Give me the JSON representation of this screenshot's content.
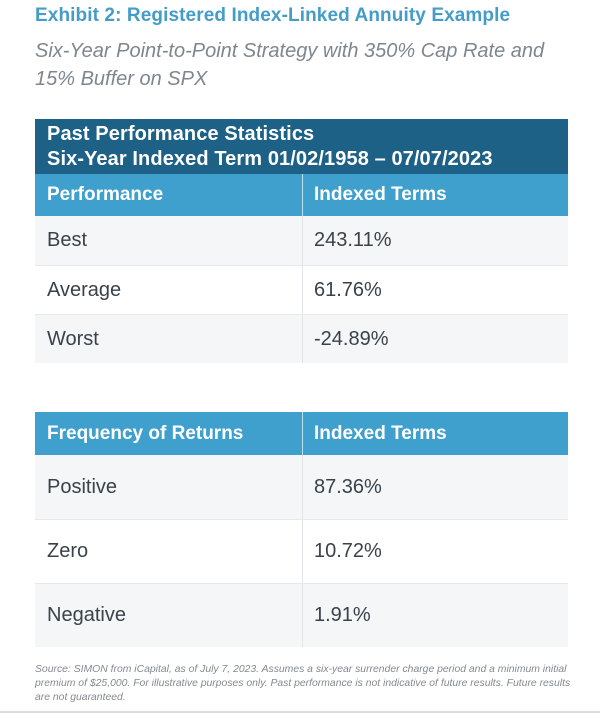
{
  "title": "Exhibit 2: Registered Index-Linked Annuity Example",
  "subtitle": "Six-Year Point-to-Point Strategy with 350% Cap Rate and 15% Buffer on SPX",
  "colors": {
    "title_blue": "#449CC8",
    "header_dark_blue": "#1D6187",
    "header_light_blue": "#3FA0CE",
    "row_alt_bg": "#F4F6F8",
    "row_text": "#39424A",
    "muted_gray": "#7E868E"
  },
  "table1": {
    "header_line1": "Past Performance Statistics",
    "header_line2": "Six-Year Indexed Term 01/02/1958 – 07/07/2023",
    "columns": [
      "Performance",
      "Indexed Terms"
    ],
    "rows": [
      {
        "label": "Best",
        "value": "243.11%"
      },
      {
        "label": "Average",
        "value": "61.76%"
      },
      {
        "label": "Worst",
        "value": "-24.89%"
      }
    ]
  },
  "table2": {
    "columns": [
      "Frequency of Returns",
      "Indexed Terms"
    ],
    "rows": [
      {
        "label": "Positive",
        "value": "87.36%"
      },
      {
        "label": "Zero",
        "value": "10.72%"
      },
      {
        "label": "Negative",
        "value": "1.91%"
      }
    ]
  },
  "footnote": "Source: SIMON from iCapital, as of July 7, 2023. Assumes a six-year surrender charge period and a minimum initial premium of $25,000. For illustrative purposes only. Past performance is not indicative of future results. Future results are not guaranteed."
}
